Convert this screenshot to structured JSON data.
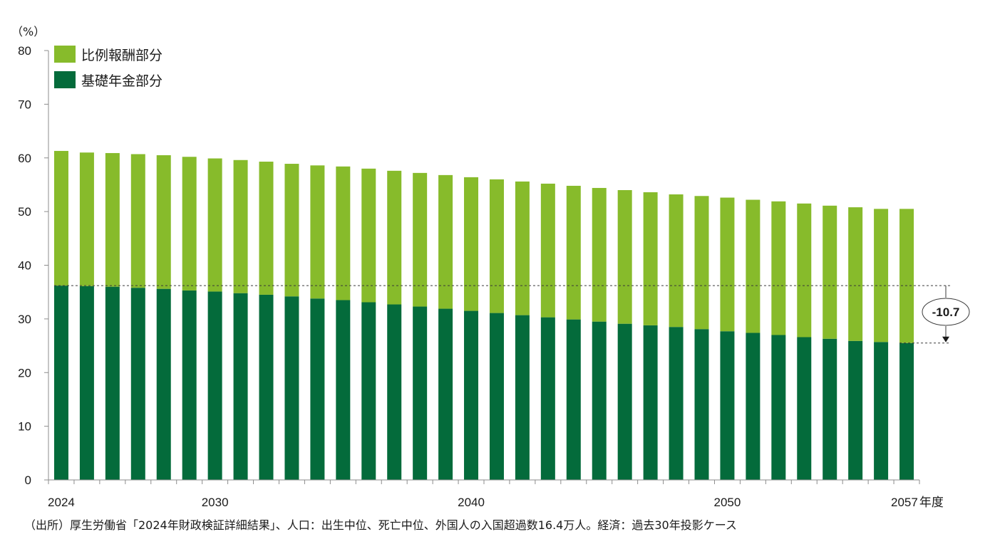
{
  "chart_data": {
    "type": "bar",
    "stacked": true,
    "y_unit": "（%）",
    "ylim": [
      0,
      80
    ],
    "yticks": [
      0,
      10,
      20,
      30,
      40,
      50,
      60,
      70,
      80
    ],
    "x_tick_labels": [
      "2024",
      "2030",
      "2040",
      "2050",
      "2057"
    ],
    "x_end_suffix": "年度",
    "categories": [
      "2024",
      "2025",
      "2026",
      "2027",
      "2028",
      "2029",
      "2030",
      "2031",
      "2032",
      "2033",
      "2034",
      "2035",
      "2036",
      "2037",
      "2038",
      "2039",
      "2040",
      "2041",
      "2042",
      "2043",
      "2044",
      "2045",
      "2046",
      "2047",
      "2048",
      "2049",
      "2050",
      "2051",
      "2052",
      "2053",
      "2054",
      "2055",
      "2056",
      "2057"
    ],
    "series": [
      {
        "name": "基礎年金部分",
        "color": "#046b3b",
        "values": [
          36.2,
          36.1,
          36.0,
          35.8,
          35.6,
          35.3,
          35.1,
          34.8,
          34.5,
          34.2,
          33.8,
          33.5,
          33.1,
          32.7,
          32.3,
          31.9,
          31.5,
          31.1,
          30.7,
          30.3,
          29.9,
          29.5,
          29.1,
          28.8,
          28.5,
          28.1,
          27.7,
          27.4,
          27.0,
          26.6,
          26.3,
          25.9,
          25.7,
          25.5
        ]
      },
      {
        "name": "比例報酬部分",
        "color": "#87bb2b",
        "values": [
          25.1,
          24.9,
          24.9,
          24.9,
          24.9,
          24.9,
          24.8,
          24.8,
          24.8,
          24.7,
          24.8,
          24.9,
          24.9,
          24.9,
          24.9,
          24.9,
          24.9,
          24.9,
          24.9,
          24.9,
          24.9,
          24.9,
          24.9,
          24.8,
          24.7,
          24.8,
          24.9,
          24.8,
          24.9,
          24.9,
          24.8,
          24.9,
          24.8,
          25.0
        ]
      }
    ],
    "grid": false,
    "legend_position": "top-left",
    "annotation": {
      "text": "-10.7",
      "from": 36.2,
      "to": 25.5
    }
  },
  "source_note": "（出所）厚生労働省「2024年財政検証詳細結果」、人口：出生中位、死亡中位、外国人の入国超過数16.4万人。経済：過去30年投影ケース"
}
